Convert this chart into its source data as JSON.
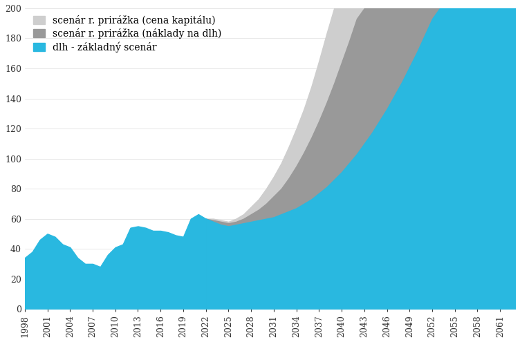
{
  "title": "",
  "ylabel": "",
  "xlabel": "",
  "ylim": [
    0,
    200
  ],
  "xlim": [
    1998,
    2063
  ],
  "yticks": [
    0,
    20,
    40,
    60,
    80,
    100,
    120,
    140,
    160,
    180,
    200
  ],
  "xticks": [
    1998,
    2001,
    2004,
    2007,
    2010,
    2013,
    2016,
    2019,
    2022,
    2025,
    2028,
    2031,
    2034,
    2037,
    2040,
    2043,
    2046,
    2049,
    2052,
    2055,
    2058,
    2061
  ],
  "legend_labels": [
    "scenár r. prirážka (cena kapitálu)",
    "scenár r. prirážka (náklady na dlh)",
    "dlh - základný scenár"
  ],
  "colors": {
    "baseline": "#29B8E0",
    "risk_debt": "#999999",
    "risk_capital": "#CECECE"
  },
  "historical_years": [
    1998,
    1999,
    2000,
    2001,
    2002,
    2003,
    2004,
    2005,
    2006,
    2007,
    2008,
    2009,
    2010,
    2011,
    2012,
    2013,
    2014,
    2015,
    2016,
    2017,
    2018,
    2019,
    2020,
    2021,
    2022
  ],
  "historical_values": [
    34,
    38,
    46,
    50,
    48,
    43,
    41,
    34,
    30,
    30,
    28,
    36,
    41,
    43,
    54,
    55,
    54,
    52,
    52,
    51,
    49,
    48,
    60,
    63,
    60
  ],
  "projection_years": [
    2022,
    2023,
    2024,
    2025,
    2026,
    2027,
    2028,
    2029,
    2030,
    2031,
    2032,
    2033,
    2034,
    2035,
    2036,
    2037,
    2038,
    2039,
    2040,
    2041,
    2042,
    2043,
    2044,
    2045,
    2046,
    2047,
    2048,
    2049,
    2050,
    2051,
    2052,
    2053,
    2054,
    2055,
    2056,
    2057,
    2058,
    2059,
    2060,
    2061,
    2062,
    2063
  ],
  "baseline_proj": [
    60,
    58,
    56,
    55,
    56,
    57,
    58,
    59,
    60,
    61,
    63,
    65,
    67,
    70,
    73,
    77,
    81,
    86,
    91,
    97,
    103,
    110,
    117,
    125,
    133,
    142,
    151,
    161,
    171,
    182,
    193,
    200,
    200,
    200,
    200,
    200,
    200,
    200,
    200,
    200,
    200,
    200
  ],
  "risk_debt_proj": [
    60,
    59,
    58,
    57,
    58,
    60,
    63,
    66,
    70,
    75,
    80,
    87,
    95,
    104,
    114,
    125,
    137,
    150,
    164,
    178,
    193,
    200,
    200,
    200,
    200,
    200,
    200,
    200,
    200,
    200,
    200,
    200,
    200,
    200,
    200,
    200,
    200,
    200,
    200,
    200,
    200,
    200
  ],
  "risk_capital_proj": [
    60,
    60,
    59,
    58,
    60,
    63,
    68,
    73,
    80,
    88,
    97,
    108,
    120,
    133,
    148,
    165,
    183,
    200,
    200,
    200,
    200,
    200,
    200,
    200,
    200,
    200,
    200,
    200,
    200,
    200,
    200,
    200,
    200,
    200,
    200,
    200,
    200,
    200,
    200,
    200,
    200,
    200
  ],
  "background_color": "#FFFFFF",
  "font_family": "serif"
}
